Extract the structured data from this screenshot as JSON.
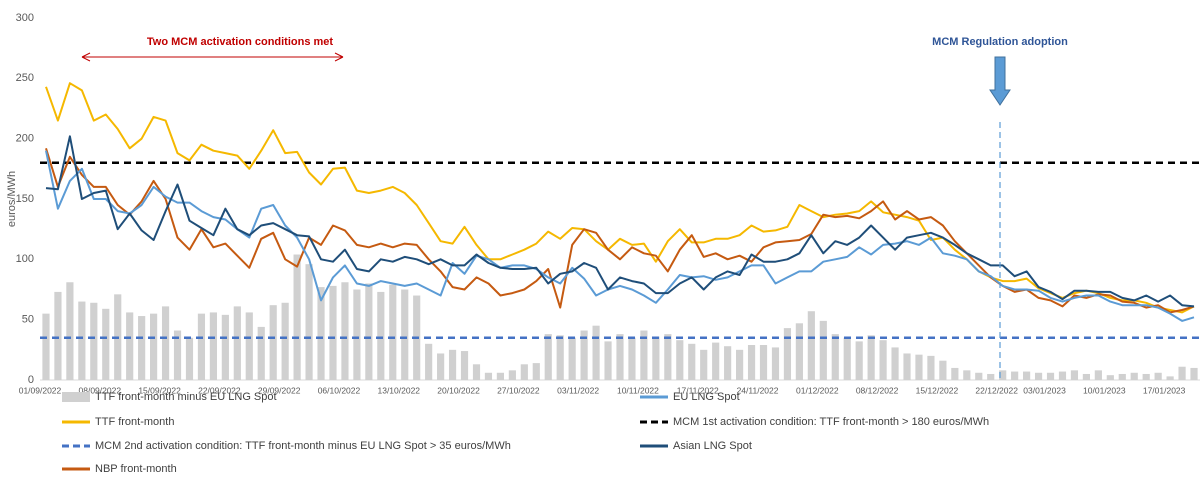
{
  "chart_data": {
    "type": "line",
    "y_label": "euros/MWh",
    "ylim": [
      0,
      300
    ],
    "yticks": [
      0,
      50,
      100,
      150,
      200,
      250,
      300
    ],
    "grid": false,
    "categories": [
      "01/09/2022",
      null,
      null,
      null,
      null,
      "08/09/2022",
      null,
      null,
      null,
      null,
      "15/09/2022",
      null,
      null,
      null,
      null,
      "22/09/2022",
      null,
      null,
      null,
      null,
      "29/09/2022",
      null,
      null,
      null,
      null,
      "06/10/2022",
      null,
      null,
      null,
      null,
      "13/10/2022",
      null,
      null,
      null,
      null,
      "20/10/2022",
      null,
      null,
      null,
      null,
      "27/10/2022",
      null,
      null,
      null,
      null,
      "03/11/2022",
      null,
      null,
      null,
      null,
      "10/11/2022",
      null,
      null,
      null,
      null,
      "17/11/2022",
      null,
      null,
      null,
      null,
      "24/11/2022",
      null,
      null,
      null,
      null,
      "01/12/2022",
      null,
      null,
      null,
      null,
      "08/12/2022",
      null,
      null,
      null,
      null,
      "15/12/2022",
      null,
      null,
      null,
      null,
      "22/12/2022",
      null,
      null,
      null,
      "03/01/2023",
      null,
      null,
      null,
      null,
      "10/01/2023",
      null,
      null,
      null,
      null,
      "17/01/2023",
      null,
      null
    ],
    "series": [
      {
        "name": "TTF front-month minus EU LNG  Spot",
        "type": "bar",
        "color": "#d0d0d0",
        "values": [
          55,
          73,
          81,
          65,
          64,
          59,
          71,
          56,
          53,
          55,
          61,
          41,
          35,
          55,
          56,
          54,
          61,
          56,
          44,
          62,
          64,
          104,
          96,
          77,
          78,
          81,
          75,
          80,
          73,
          79,
          75,
          70,
          30,
          22,
          25,
          24,
          13,
          6,
          6,
          8,
          13,
          14,
          38,
          37,
          35,
          41,
          45,
          32,
          38,
          35,
          41,
          36,
          38,
          33,
          30,
          25,
          31,
          28,
          25,
          29,
          29,
          27,
          43,
          47,
          57,
          49,
          38,
          35,
          32,
          37,
          33,
          27,
          22,
          21,
          20,
          16,
          10,
          8,
          6,
          5,
          8,
          7,
          7,
          6,
          6,
          7,
          8,
          5,
          8,
          4,
          5,
          6,
          5,
          6,
          3,
          11,
          10
        ]
      },
      {
        "name": "TTF front-month",
        "type": "line",
        "color": "#f5b800",
        "values": [
          243,
          215,
          246,
          240,
          215,
          220,
          208,
          192,
          200,
          218,
          215,
          188,
          182,
          195,
          190,
          188,
          186,
          175,
          190,
          207,
          188,
          189,
          172,
          162,
          175,
          176,
          157,
          155,
          157,
          160,
          155,
          145,
          130,
          115,
          113,
          127,
          112,
          100,
          100,
          104,
          108,
          113,
          123,
          117,
          126,
          125,
          115,
          108,
          117,
          112,
          113,
          98,
          115,
          125,
          114,
          114,
          117,
          117,
          120,
          128,
          123,
          124,
          127,
          145,
          140,
          135,
          137,
          138,
          140,
          148,
          139,
          137,
          135,
          132,
          116,
          118,
          108,
          100,
          90,
          85,
          82,
          82,
          84,
          76,
          72,
          68,
          72,
          74,
          72,
          68,
          66,
          66,
          64,
          60,
          58,
          56,
          61
        ]
      },
      {
        "name": "NBP front-month",
        "type": "line",
        "color": "#c55a11",
        "values": [
          192,
          160,
          185,
          170,
          160,
          160,
          145,
          137,
          148,
          165,
          150,
          118,
          108,
          125,
          110,
          113,
          103,
          93,
          117,
          122,
          100,
          94,
          118,
          112,
          128,
          124,
          112,
          110,
          113,
          110,
          113,
          112,
          100,
          90,
          77,
          75,
          85,
          80,
          70,
          72,
          75,
          82,
          92,
          60,
          112,
          125,
          122,
          108,
          100,
          110,
          105,
          103,
          90,
          108,
          120,
          102,
          105,
          100,
          103,
          98,
          110,
          114,
          115,
          116,
          121,
          137,
          135,
          136,
          134,
          140,
          148,
          133,
          140,
          133,
          135,
          128,
          115,
          105,
          95,
          85,
          78,
          73,
          75,
          68,
          66,
          61,
          70,
          68,
          71,
          70,
          65,
          64,
          60,
          62,
          56,
          58,
          61
        ]
      },
      {
        "name": "EU LNG Spot",
        "type": "line",
        "color": "#5b9bd5",
        "values": [
          190,
          142,
          165,
          175,
          150,
          150,
          140,
          138,
          145,
          160,
          152,
          147,
          147,
          140,
          135,
          133,
          125,
          118,
          142,
          145,
          128,
          118,
          100,
          66,
          85,
          95,
          80,
          78,
          82,
          80,
          78,
          80,
          75,
          70,
          97,
          88,
          103,
          100,
          93,
          95,
          95,
          92,
          85,
          80,
          93,
          84,
          70,
          75,
          78,
          75,
          70,
          64,
          75,
          87,
          85,
          86,
          83,
          85,
          90,
          95,
          95,
          80,
          85,
          90,
          90,
          98,
          100,
          102,
          110,
          104,
          112,
          113,
          115,
          112,
          118,
          105,
          103,
          100,
          90,
          86,
          78,
          75,
          75,
          74,
          68,
          65,
          68,
          70,
          70,
          65,
          62,
          62,
          62,
          60,
          55,
          49,
          52
        ]
      },
      {
        "name": "Asian LNG Spot",
        "type": "line",
        "color": "#1f4e79",
        "values": [
          159,
          158,
          202,
          150,
          155,
          157,
          125,
          138,
          124,
          116,
          140,
          162,
          132,
          126,
          120,
          142,
          125,
          120,
          128,
          130,
          125,
          120,
          119,
          100,
          98,
          108,
          92,
          90,
          100,
          98,
          102,
          100,
          96,
          100,
          95,
          95,
          104,
          97,
          93,
          92,
          92,
          93,
          80,
          88,
          90,
          97,
          93,
          75,
          85,
          82,
          80,
          72,
          72,
          80,
          85,
          75,
          85,
          90,
          87,
          104,
          98,
          98,
          100,
          105,
          120,
          105,
          115,
          112,
          118,
          128,
          118,
          108,
          118,
          120,
          122,
          118,
          112,
          105,
          100,
          95,
          95,
          86,
          90,
          77,
          73,
          67,
          74,
          74,
          73,
          73,
          68,
          66,
          70,
          65,
          70,
          62,
          61
        ]
      }
    ],
    "reference_lines": [
      {
        "name": "MCM 1st activation condition: TTF front-month > 180 euros/MWh",
        "value": 180,
        "color": "#000000"
      },
      {
        "name": "MCM 2nd activation condition: TTF front-month minus EU LNG Spot > 35 euros/MWh",
        "value": 35,
        "color": "#4472c4"
      }
    ],
    "annotations": [
      {
        "text": "Two MCM activation conditions met",
        "color": "#c00000"
      },
      {
        "text": "MCM Regulation adoption",
        "color": "#2f5597"
      }
    ]
  }
}
